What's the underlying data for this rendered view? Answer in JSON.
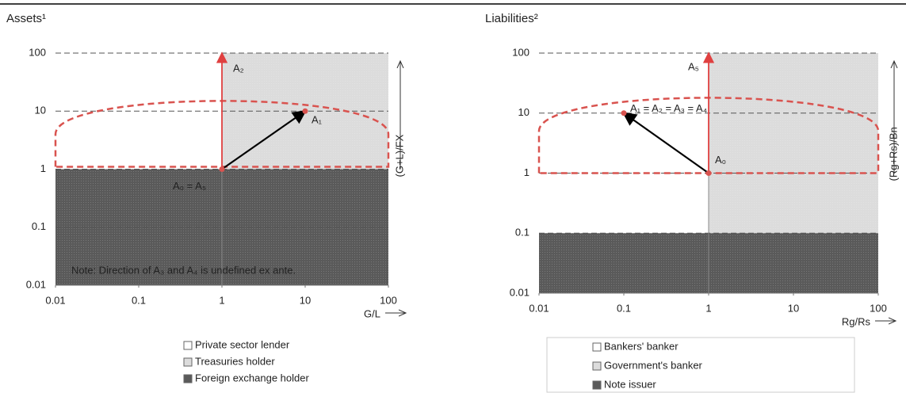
{
  "chart_data": [
    {
      "type": "region-map",
      "title": "Assets¹",
      "x_label": "G/L",
      "y_label": "(G+L)/FX",
      "xscale": "log",
      "yscale": "log",
      "xlim": [
        0.01,
        100
      ],
      "ylim": [
        0.01,
        100
      ],
      "xticks": [
        0.01,
        0.1,
        1,
        10,
        100
      ],
      "yticks": [
        0.01,
        0.1,
        1,
        10,
        100
      ],
      "vline": 1,
      "regions": [
        {
          "name": "Private sector lender",
          "color": "#ffffff",
          "x": [
            0.01,
            1
          ],
          "y": [
            1,
            100
          ]
        },
        {
          "name": "Treasuries holder",
          "color": "#dcdcdc",
          "x": [
            1,
            100
          ],
          "y": [
            1,
            100
          ]
        },
        {
          "name": "Foreign exchange holder",
          "color": "#5a5a5a",
          "x": [
            0.01,
            100
          ],
          "y": [
            0.01,
            1
          ]
        }
      ],
      "boundary": {
        "color": "#d9534f",
        "bottom": 1.1,
        "shoulder": 4,
        "peak": 15
      },
      "points": [
        {
          "label": "A₀ = A₅",
          "x": 1,
          "y": 1
        },
        {
          "label": "A₁",
          "x": 10,
          "y": 10
        }
      ],
      "arrows": [
        {
          "from": [
            1,
            1
          ],
          "to": [
            10,
            10
          ],
          "color": "#000000"
        },
        {
          "label": "A₂",
          "from": [
            1,
            1
          ],
          "to": [
            1,
            100
          ],
          "color": "#e04040"
        }
      ],
      "note": "Note: Direction of A₃ and A₄ is undefined ex ante."
    },
    {
      "type": "region-map",
      "title": "Liabilities²",
      "x_label": "Rg/Rs",
      "y_label": "(Rg+Rs)/Bn",
      "xscale": "log",
      "yscale": "log",
      "xlim": [
        0.01,
        100
      ],
      "ylim": [
        0.01,
        100
      ],
      "xticks": [
        0.01,
        0.1,
        1,
        10,
        100
      ],
      "yticks": [
        0.01,
        0.1,
        1,
        10,
        100
      ],
      "vline": 1,
      "regions": [
        {
          "name": "Bankers' banker",
          "color": "#ffffff",
          "x": [
            0.01,
            1
          ],
          "y": [
            0.1,
            100
          ]
        },
        {
          "name": "Government's banker",
          "color": "#dcdcdc",
          "x": [
            1,
            100
          ],
          "y": [
            0.1,
            100
          ]
        },
        {
          "name": "Note issuer",
          "color": "#5a5a5a",
          "x": [
            0.01,
            100
          ],
          "y": [
            0.01,
            0.1
          ]
        }
      ],
      "boundary": {
        "color": "#d9534f",
        "bottom": 1,
        "shoulder": 5,
        "peak": 18
      },
      "points": [
        {
          "label": "A₀",
          "x": 1,
          "y": 1
        },
        {
          "label": "A₁ = A₂ = A₃ = A₄",
          "x": 0.1,
          "y": 10
        }
      ],
      "arrows": [
        {
          "from": [
            1,
            1
          ],
          "to": [
            0.1,
            10
          ],
          "color": "#000000"
        },
        {
          "label": "A₅",
          "from": [
            1,
            1
          ],
          "to": [
            1,
            100
          ],
          "color": "#e04040"
        }
      ]
    }
  ]
}
